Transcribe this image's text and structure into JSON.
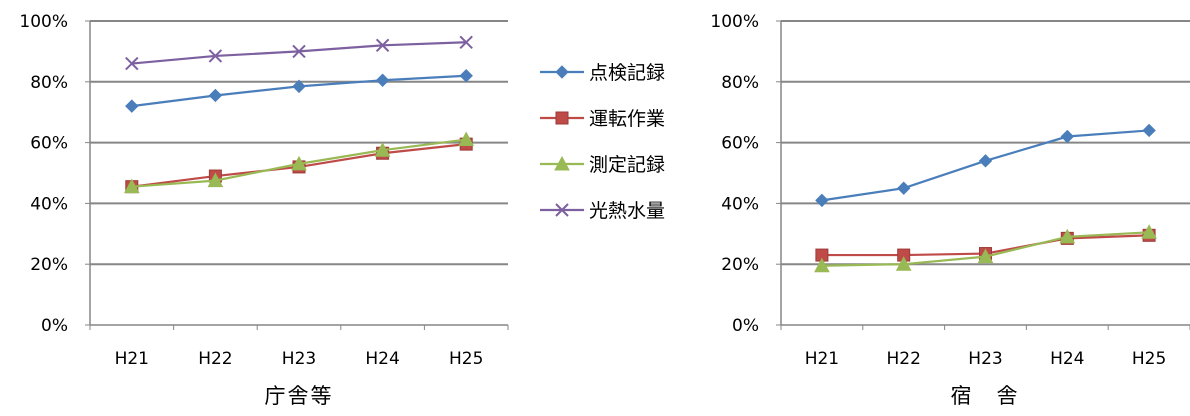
{
  "chart_data": [
    {
      "type": "line",
      "title": "",
      "xlabel": "庁舎等",
      "ylabel": "",
      "categories": [
        "H21",
        "H22",
        "H23",
        "H24",
        "H25"
      ],
      "ylim": [
        0,
        100
      ],
      "yticks": [
        "0%",
        "20%",
        "40%",
        "60%",
        "80%",
        "100%"
      ],
      "grid": true,
      "legend": "right",
      "series": [
        {
          "name": "点検記録",
          "values": [
            72,
            75.5,
            78.5,
            80.5,
            82
          ],
          "color": "#4a7ebb",
          "marker": "diamond"
        },
        {
          "name": "運転作業",
          "values": [
            45.5,
            49,
            52,
            56.5,
            59.5
          ],
          "color": "#be4b48",
          "marker": "square"
        },
        {
          "name": "測定記録",
          "values": [
            45.5,
            47.5,
            53,
            57.5,
            61
          ],
          "color": "#98b954",
          "marker": "triangle"
        },
        {
          "name": "光熱水量",
          "values": [
            86,
            88.5,
            90,
            92,
            93
          ],
          "color": "#7d60a0",
          "marker": "x"
        }
      ]
    },
    {
      "type": "line",
      "title": "",
      "xlabel": "宿　舎",
      "ylabel": "",
      "categories": [
        "H21",
        "H22",
        "H23",
        "H24",
        "H25"
      ],
      "ylim": [
        0,
        100
      ],
      "yticks": [
        "0%",
        "20%",
        "40%",
        "60%",
        "80%",
        "100%"
      ],
      "grid": true,
      "legend": "none",
      "series": [
        {
          "name": "点検記録",
          "values": [
            41,
            45,
            54,
            62,
            64
          ],
          "color": "#4a7ebb",
          "marker": "diamond"
        },
        {
          "name": "運転作業",
          "values": [
            23,
            23,
            23.5,
            28.5,
            29.5
          ],
          "color": "#be4b48",
          "marker": "square"
        },
        {
          "name": "測定記録",
          "values": [
            19.5,
            20,
            22.5,
            29,
            30.5
          ],
          "color": "#98b954",
          "marker": "triangle"
        }
      ]
    }
  ]
}
